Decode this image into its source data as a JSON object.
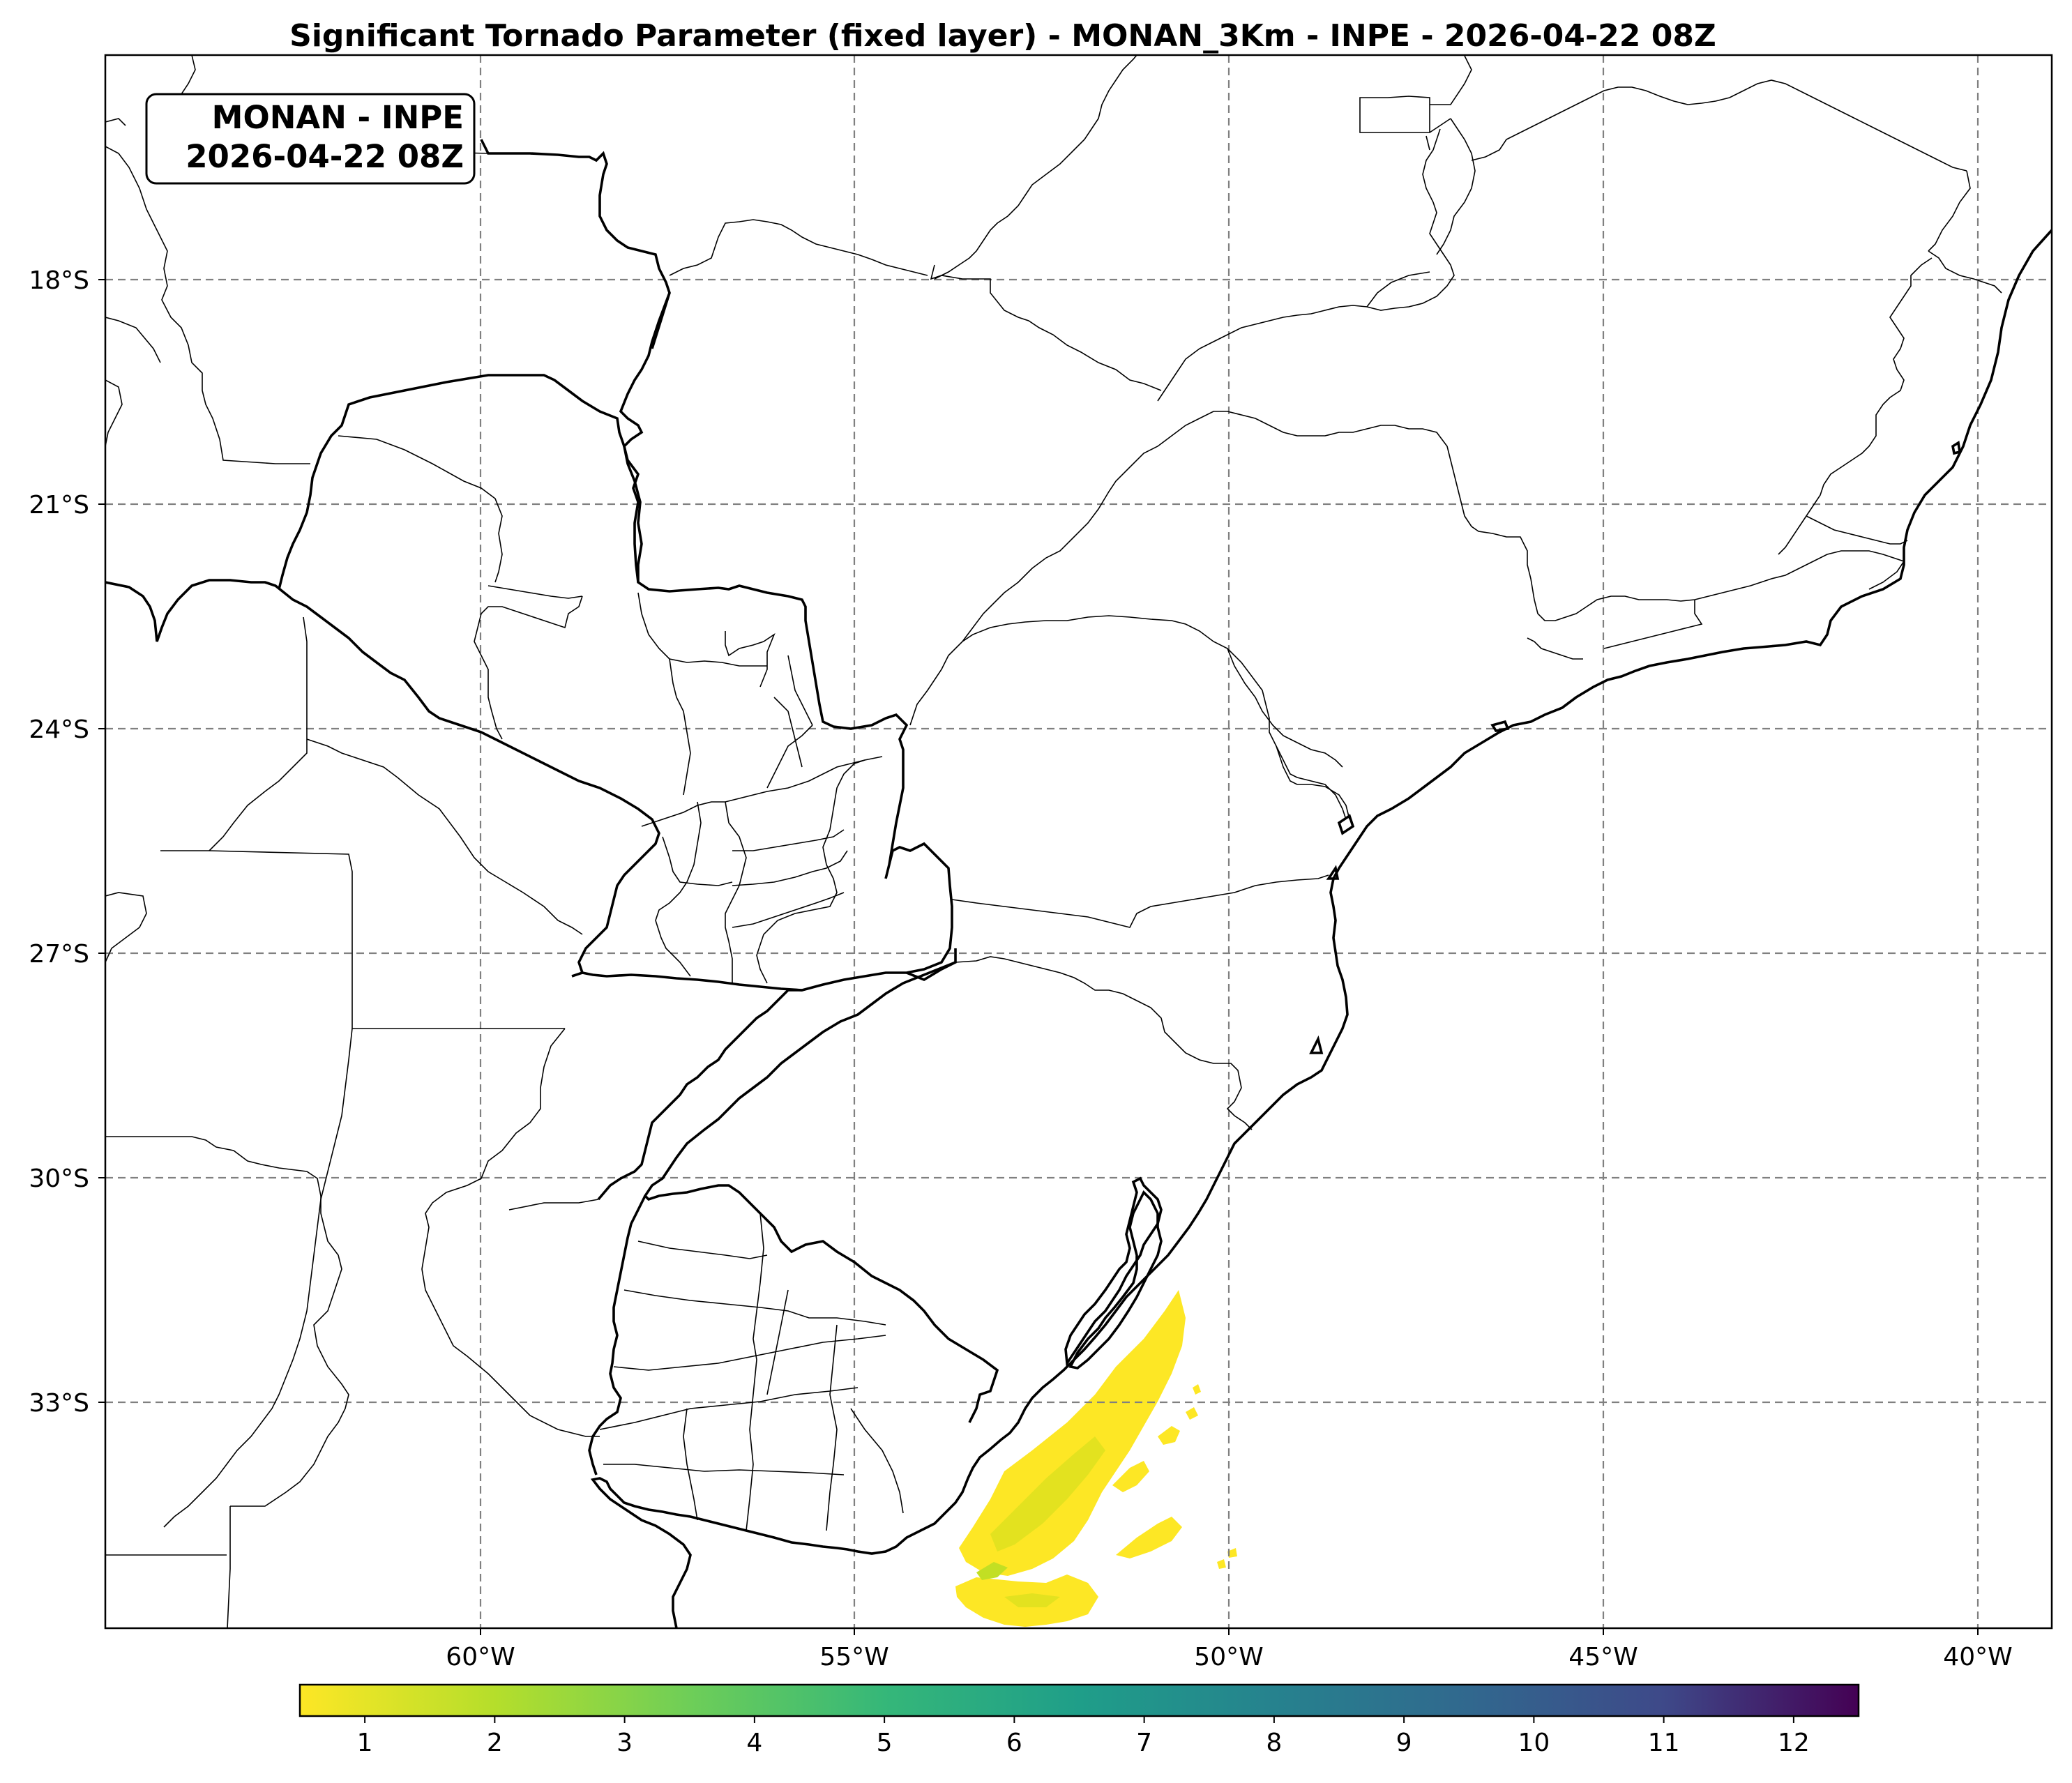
{
  "title": "Significant Tornado Parameter (fixed layer) - MONAN_3Km - INPE - 2026-04-22 08Z",
  "info_box": {
    "line1": "MONAN - INPE",
    "line2": "2026-04-22 08Z"
  },
  "map": {
    "lon_range": [
      -65,
      -39
    ],
    "lat_range": [
      -36,
      -15
    ],
    "lat_ticks": [
      {
        "value": -18,
        "label": "18°S"
      },
      {
        "value": -21,
        "label": "21°S"
      },
      {
        "value": -24,
        "label": "24°S"
      },
      {
        "value": -27,
        "label": "27°S"
      },
      {
        "value": -30,
        "label": "30°S"
      },
      {
        "value": -33,
        "label": "33°S"
      }
    ],
    "lon_ticks": [
      {
        "value": -60,
        "label": "60°W"
      },
      {
        "value": -55,
        "label": "55°W"
      },
      {
        "value": -50,
        "label": "50°W"
      },
      {
        "value": -45,
        "label": "45°W"
      },
      {
        "value": -40,
        "label": "40°W"
      }
    ],
    "gridlines": true,
    "field_color": "#fde725"
  },
  "colorbar": {
    "colormap": "viridis",
    "min": 0.5,
    "max": 12.5,
    "ticks": [
      "1",
      "2",
      "3",
      "4",
      "5",
      "6",
      "7",
      "8",
      "9",
      "10",
      "11",
      "12"
    ]
  }
}
